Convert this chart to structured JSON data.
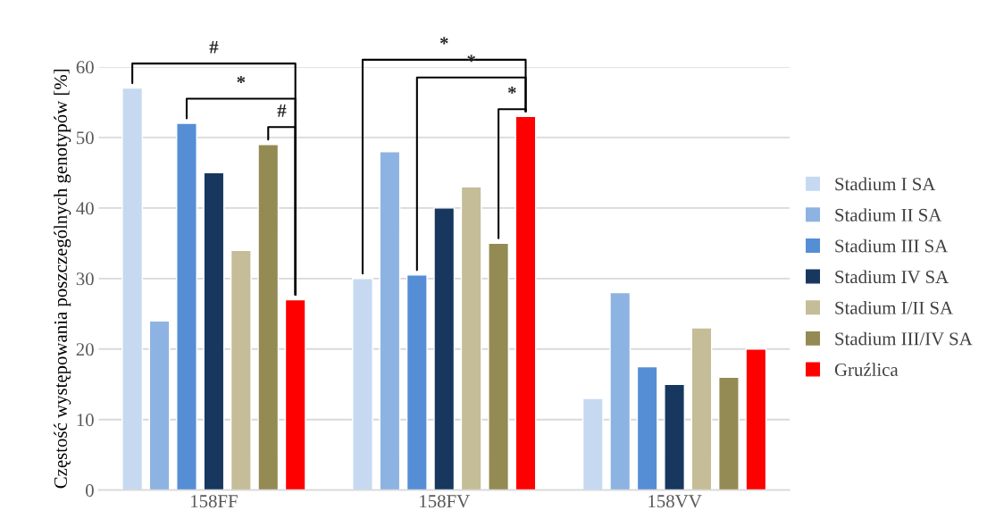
{
  "chart_data": {
    "type": "bar",
    "ylabel": "Częstość występowania poszczególnych genotypów [%]",
    "categories": [
      "158FF",
      "158FV",
      "158VV"
    ],
    "series": [
      {
        "name": "Stadium I SA",
        "color": "#c6d9f1",
        "values": [
          57,
          30,
          13
        ]
      },
      {
        "name": "Stadium II SA",
        "color": "#8db3e2",
        "values": [
          24,
          48,
          28
        ]
      },
      {
        "name": "Stadium III SA",
        "color": "#558ed5",
        "values": [
          52,
          30.5,
          17.5
        ]
      },
      {
        "name": "Stadium IV SA",
        "color": "#17375e",
        "values": [
          45,
          40,
          15
        ]
      },
      {
        "name": "Stadium I/II SA",
        "color": "#c4bd97",
        "values": [
          34,
          43,
          23
        ]
      },
      {
        "name": "Stadium III/IV SA",
        "color": "#948a54",
        "values": [
          49,
          35,
          16
        ]
      },
      {
        "name": "Gruźlica",
        "color": "#ff0000",
        "values": [
          27,
          53,
          20
        ]
      }
    ],
    "ylim": [
      0,
      60
    ],
    "yticks": [
      0,
      10,
      20,
      30,
      40,
      50,
      60
    ],
    "grid": "y",
    "legend": "right",
    "annotations": [
      "#",
      "*",
      "#",
      "*",
      "*",
      "*"
    ]
  }
}
